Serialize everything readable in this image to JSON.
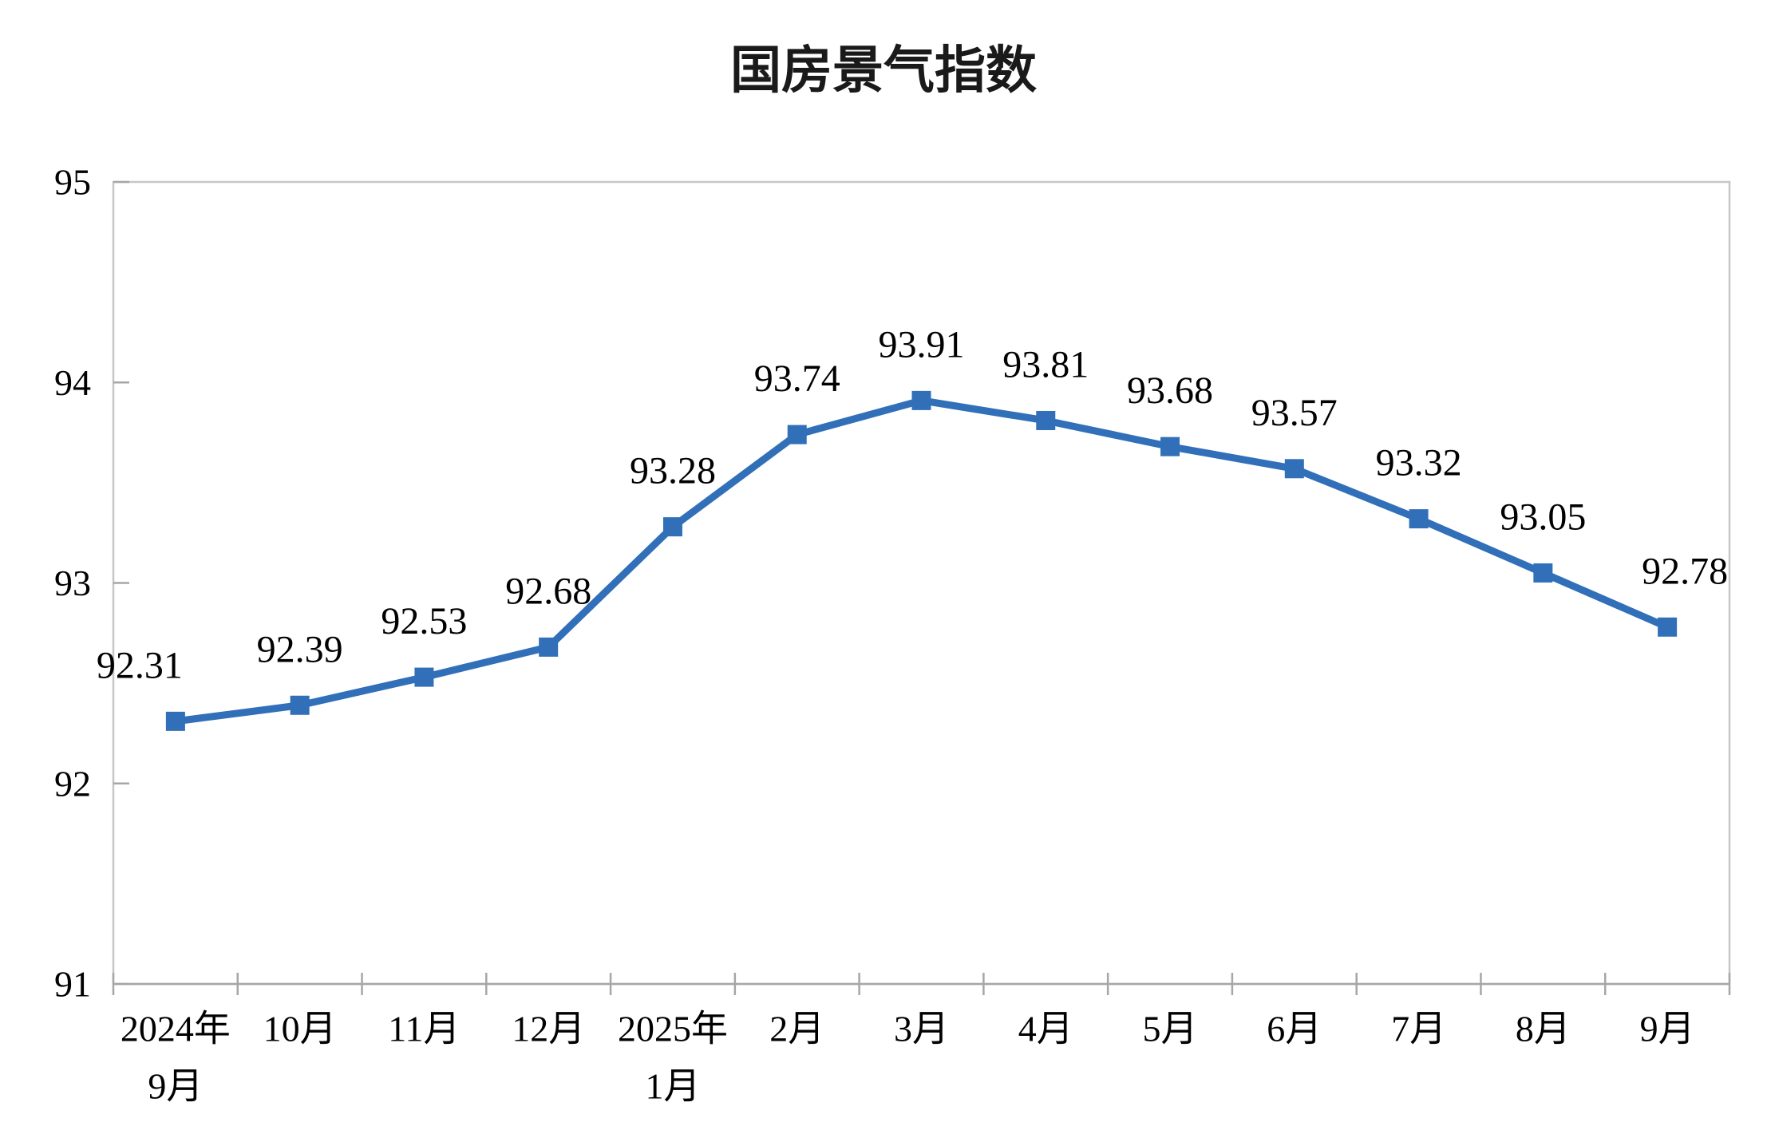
{
  "chart_data": {
    "type": "line",
    "title": "国房景气指数",
    "categories": [
      "2024年\n9月",
      "10月",
      "11月",
      "12月",
      "2025年\n1月",
      "2月",
      "3月",
      "4月",
      "5月",
      "6月",
      "7月",
      "8月",
      "9月"
    ],
    "series": [
      {
        "name": "国房景气指数",
        "values": [
          92.31,
          92.39,
          92.53,
          92.68,
          93.28,
          93.74,
          93.91,
          93.81,
          93.68,
          93.57,
          93.32,
          93.05,
          92.78
        ]
      }
    ],
    "data_labels": [
      "92.31",
      "92.39",
      "92.53",
      "92.68",
      "93.28",
      "93.74",
      "93.91",
      "93.81",
      "93.68",
      "93.57",
      "93.32",
      "93.05",
      "92.78"
    ],
    "xlabel": "",
    "ylabel": "",
    "ylim": [
      91,
      95
    ],
    "yticks": [
      "95",
      "94",
      "93",
      "92",
      "91"
    ],
    "ytick_values": [
      95,
      94,
      93,
      92,
      91
    ],
    "grid": false,
    "legend": "none",
    "marker": "square",
    "colors": {
      "line": "#3170B9",
      "marker": "#3170B9",
      "label": "#000000",
      "axis": "#A6A6A6",
      "frame": "#C6C6C6",
      "title": "#1A1A1A"
    },
    "label_dx": [
      -45,
      0,
      0,
      0,
      0,
      0,
      0,
      0,
      0,
      0,
      0,
      0,
      22
    ]
  }
}
